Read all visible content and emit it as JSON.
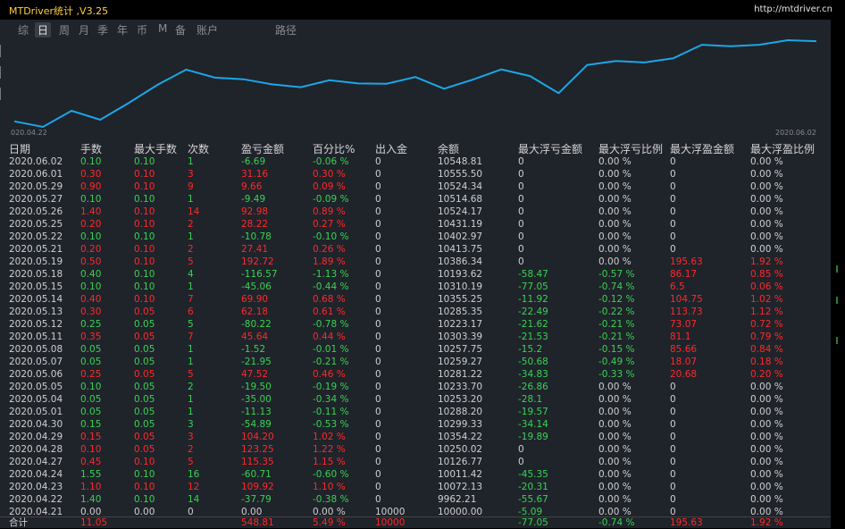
{
  "app": {
    "title": "MTDriver统计 ,V3.25",
    "url": "http://mtdriver.cn"
  },
  "tabs": [
    {
      "label": "综",
      "active": false
    },
    {
      "label": "日",
      "active": true
    },
    {
      "label": "周",
      "active": false
    },
    {
      "label": "月",
      "active": false
    },
    {
      "label": "季",
      "active": false
    },
    {
      "label": "年",
      "active": false
    },
    {
      "label": "币",
      "active": false
    },
    {
      "label": "M",
      "active": false
    },
    {
      "label": "备",
      "active": false
    },
    {
      "label": "账户",
      "active": false
    },
    {
      "label": "路径",
      "active": false
    }
  ],
  "chart": {
    "start_label": "020.04.22",
    "end_label": "2020.06.02",
    "line_color": "#1aa7e8"
  },
  "table": {
    "columns": [
      "日期",
      "手数",
      "最大手数",
      "次数",
      "盈亏金额",
      "百分比%",
      "出入金",
      "余额",
      "最大浮亏金额",
      "最大浮亏比例",
      "最大浮盈金额",
      "最大浮盈比例"
    ],
    "rows": [
      [
        "2020.06.02",
        "0.10",
        "0.10",
        "1",
        "-6.69",
        "-0.06 %",
        "0",
        "10548.81",
        "0",
        "0.00 %",
        "0",
        "0.00 %"
      ],
      [
        "2020.06.01",
        "0.30",
        "0.10",
        "3",
        "31.16",
        "0.30 %",
        "0",
        "10555.50",
        "0",
        "0.00 %",
        "0",
        "0.00 %"
      ],
      [
        "2020.05.29",
        "0.90",
        "0.10",
        "9",
        "9.66",
        "0.09 %",
        "0",
        "10524.34",
        "0",
        "0.00 %",
        "0",
        "0.00 %"
      ],
      [
        "2020.05.27",
        "0.10",
        "0.10",
        "1",
        "-9.49",
        "-0.09 %",
        "0",
        "10514.68",
        "0",
        "0.00 %",
        "0",
        "0.00 %"
      ],
      [
        "2020.05.26",
        "1.40",
        "0.10",
        "14",
        "92.98",
        "0.89 %",
        "0",
        "10524.17",
        "0",
        "0.00 %",
        "0",
        "0.00 %"
      ],
      [
        "2020.05.25",
        "0.20",
        "0.10",
        "2",
        "28.22",
        "0.27 %",
        "0",
        "10431.19",
        "0",
        "0.00 %",
        "0",
        "0.00 %"
      ],
      [
        "2020.05.22",
        "0.10",
        "0.10",
        "1",
        "-10.78",
        "-0.10 %",
        "0",
        "10402.97",
        "0",
        "0.00 %",
        "0",
        "0.00 %"
      ],
      [
        "2020.05.21",
        "0.20",
        "0.10",
        "2",
        "27.41",
        "0.26 %",
        "0",
        "10413.75",
        "0",
        "0.00 %",
        "0",
        "0.00 %"
      ],
      [
        "2020.05.19",
        "0.50",
        "0.10",
        "5",
        "192.72",
        "1.89 %",
        "0",
        "10386.34",
        "0",
        "0.00 %",
        "195.63",
        "1.92 %"
      ],
      [
        "2020.05.18",
        "0.40",
        "0.10",
        "4",
        "-116.57",
        "-1.13 %",
        "0",
        "10193.62",
        "-58.47",
        "-0.57 %",
        "86.17",
        "0.85 %"
      ],
      [
        "2020.05.15",
        "0.10",
        "0.10",
        "1",
        "-45.06",
        "-0.44 %",
        "0",
        "10310.19",
        "-77.05",
        "-0.74 %",
        "6.5",
        "0.06 %"
      ],
      [
        "2020.05.14",
        "0.40",
        "0.10",
        "7",
        "69.90",
        "0.68 %",
        "0",
        "10355.25",
        "-11.92",
        "-0.12 %",
        "104.75",
        "1.02 %"
      ],
      [
        "2020.05.13",
        "0.30",
        "0.05",
        "6",
        "62.18",
        "0.61 %",
        "0",
        "10285.35",
        "-22.49",
        "-0.22 %",
        "113.73",
        "1.12 %"
      ],
      [
        "2020.05.12",
        "0.25",
        "0.05",
        "5",
        "-80.22",
        "-0.78 %",
        "0",
        "10223.17",
        "-21.62",
        "-0.21 %",
        "73.07",
        "0.72 %"
      ],
      [
        "2020.05.11",
        "0.35",
        "0.05",
        "7",
        "45.64",
        "0.44 %",
        "0",
        "10303.39",
        "-21.53",
        "-0.21 %",
        "81.1",
        "0.79 %"
      ],
      [
        "2020.05.08",
        "0.05",
        "0.05",
        "1",
        "-1.52",
        "-0.01 %",
        "0",
        "10257.75",
        "-15.2",
        "-0.15 %",
        "85.66",
        "0.84 %"
      ],
      [
        "2020.05.07",
        "0.05",
        "0.05",
        "1",
        "-21.95",
        "-0.21 %",
        "0",
        "10259.27",
        "-50.68",
        "-0.49 %",
        "18.07",
        "0.18 %"
      ],
      [
        "2020.05.06",
        "0.25",
        "0.05",
        "5",
        "47.52",
        "0.46 %",
        "0",
        "10281.22",
        "-34.83",
        "-0.33 %",
        "20.68",
        "0.20 %"
      ],
      [
        "2020.05.05",
        "0.10",
        "0.05",
        "2",
        "-19.50",
        "-0.19 %",
        "0",
        "10233.70",
        "-26.86",
        "0.00 %",
        "0",
        "0.00 %"
      ],
      [
        "2020.05.04",
        "0.05",
        "0.05",
        "1",
        "-35.00",
        "-0.34 %",
        "0",
        "10253.20",
        "-28.1",
        "0.00 %",
        "0",
        "0.00 %"
      ],
      [
        "2020.05.01",
        "0.05",
        "0.05",
        "1",
        "-11.13",
        "-0.11 %",
        "0",
        "10288.20",
        "-19.57",
        "0.00 %",
        "0",
        "0.00 %"
      ],
      [
        "2020.04.30",
        "0.15",
        "0.05",
        "3",
        "-54.89",
        "-0.53 %",
        "0",
        "10299.33",
        "-34.14",
        "0.00 %",
        "0",
        "0.00 %"
      ],
      [
        "2020.04.29",
        "0.15",
        "0.05",
        "3",
        "104.20",
        "1.02 %",
        "0",
        "10354.22",
        "-19.89",
        "0.00 %",
        "0",
        "0.00 %"
      ],
      [
        "2020.04.28",
        "0.10",
        "0.05",
        "2",
        "123.25",
        "1.22 %",
        "0",
        "10250.02",
        "0",
        "0.00 %",
        "0",
        "0.00 %"
      ],
      [
        "2020.04.27",
        "0.45",
        "0.10",
        "5",
        "115.35",
        "1.15 %",
        "0",
        "10126.77",
        "0",
        "0.00 %",
        "0",
        "0.00 %"
      ],
      [
        "2020.04.24",
        "1.55",
        "0.10",
        "16",
        "-60.71",
        "-0.60 %",
        "0",
        "10011.42",
        "-45.35",
        "0.00 %",
        "0",
        "0.00 %"
      ],
      [
        "2020.04.23",
        "1.10",
        "0.10",
        "12",
        "109.92",
        "1.10 %",
        "0",
        "10072.13",
        "-20.31",
        "0.00 %",
        "0",
        "0.00 %"
      ],
      [
        "2020.04.22",
        "1.40",
        "0.10",
        "14",
        "-37.79",
        "-0.38 %",
        "0",
        "9962.21",
        "-55.67",
        "0.00 %",
        "0",
        "0.00 %"
      ],
      [
        "2020.04.21",
        "0.00",
        "0.00",
        "0",
        "0.00",
        "0.00 %",
        "10000",
        "10000.00",
        "-5.09",
        "0.00 %",
        "0",
        "0.00 %"
      ]
    ],
    "total": [
      "合计",
      "11.05",
      "",
      "",
      "548.81",
      "5.49 %",
      "10000",
      "",
      "-77.05",
      "-0.74 %",
      "195.63",
      "1.92 %"
    ]
  }
}
